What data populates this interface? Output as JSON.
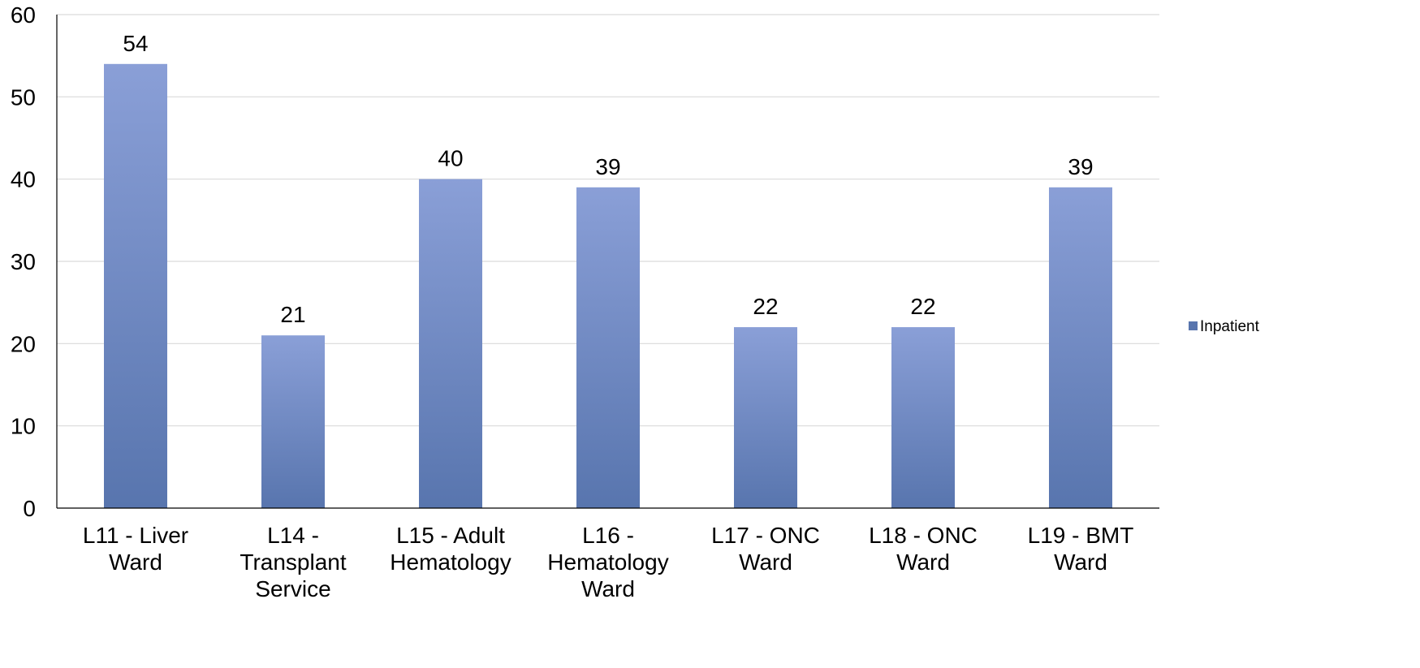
{
  "chart_data": {
    "type": "bar",
    "categories": [
      [
        "L11 - Liver",
        "Ward"
      ],
      [
        "L14 -",
        "Transplant",
        "Service"
      ],
      [
        "L15 - Adult",
        "Hematology"
      ],
      [
        "L16 -",
        "Hematology",
        "Ward"
      ],
      [
        "L17 - ONC",
        "Ward"
      ],
      [
        "L18 - ONC",
        "Ward"
      ],
      [
        "L19 - BMT",
        "Ward"
      ]
    ],
    "series": [
      {
        "name": "Inpatient",
        "values": [
          54,
          21,
          40,
          39,
          22,
          22,
          39
        ]
      }
    ],
    "ylim": [
      0,
      60
    ],
    "yticks": [
      0,
      10,
      20,
      30,
      40,
      50,
      60
    ],
    "grid": true,
    "legend_position": "right",
    "colors": {
      "bar_top": "#8a9fd7",
      "bar_bottom": "#5875ae",
      "grid": "#d9d9d9",
      "axis": "#000000"
    }
  }
}
